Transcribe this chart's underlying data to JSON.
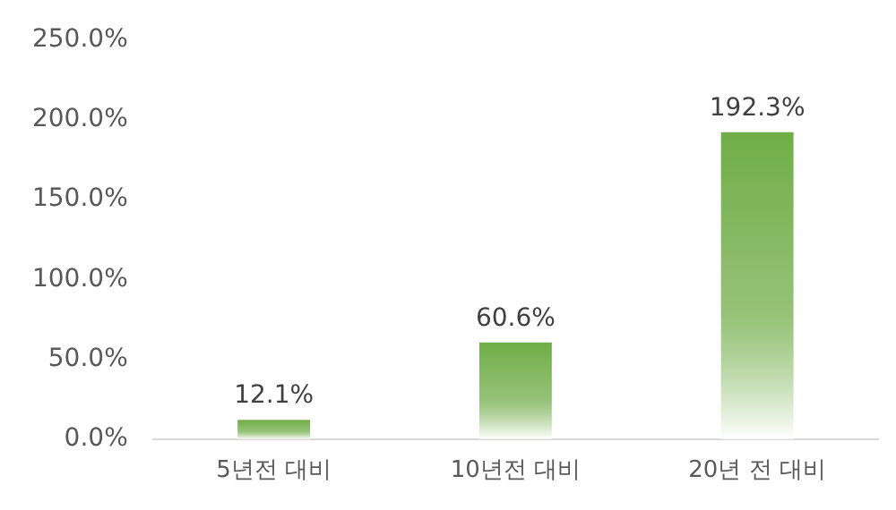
{
  "chart_data": {
    "type": "bar",
    "categories": [
      "5년전 대비",
      "10년전 대비",
      "20년 전 대비"
    ],
    "values": [
      12.1,
      60.6,
      192.3
    ],
    "value_labels": [
      "12.1%",
      "60.6%",
      "192.3%"
    ],
    "color": "#70ad47",
    "ylim": [
      0,
      250
    ],
    "yticks": [
      {
        "value": 0,
        "label": "0.0%"
      },
      {
        "value": 50,
        "label": "50.0%"
      },
      {
        "value": 100,
        "label": "100.0%"
      },
      {
        "value": 150,
        "label": "150.0%"
      },
      {
        "value": 200,
        "label": "200.0%"
      },
      {
        "value": 250,
        "label": "250.0%"
      }
    ],
    "grid": false,
    "legend": false
  }
}
